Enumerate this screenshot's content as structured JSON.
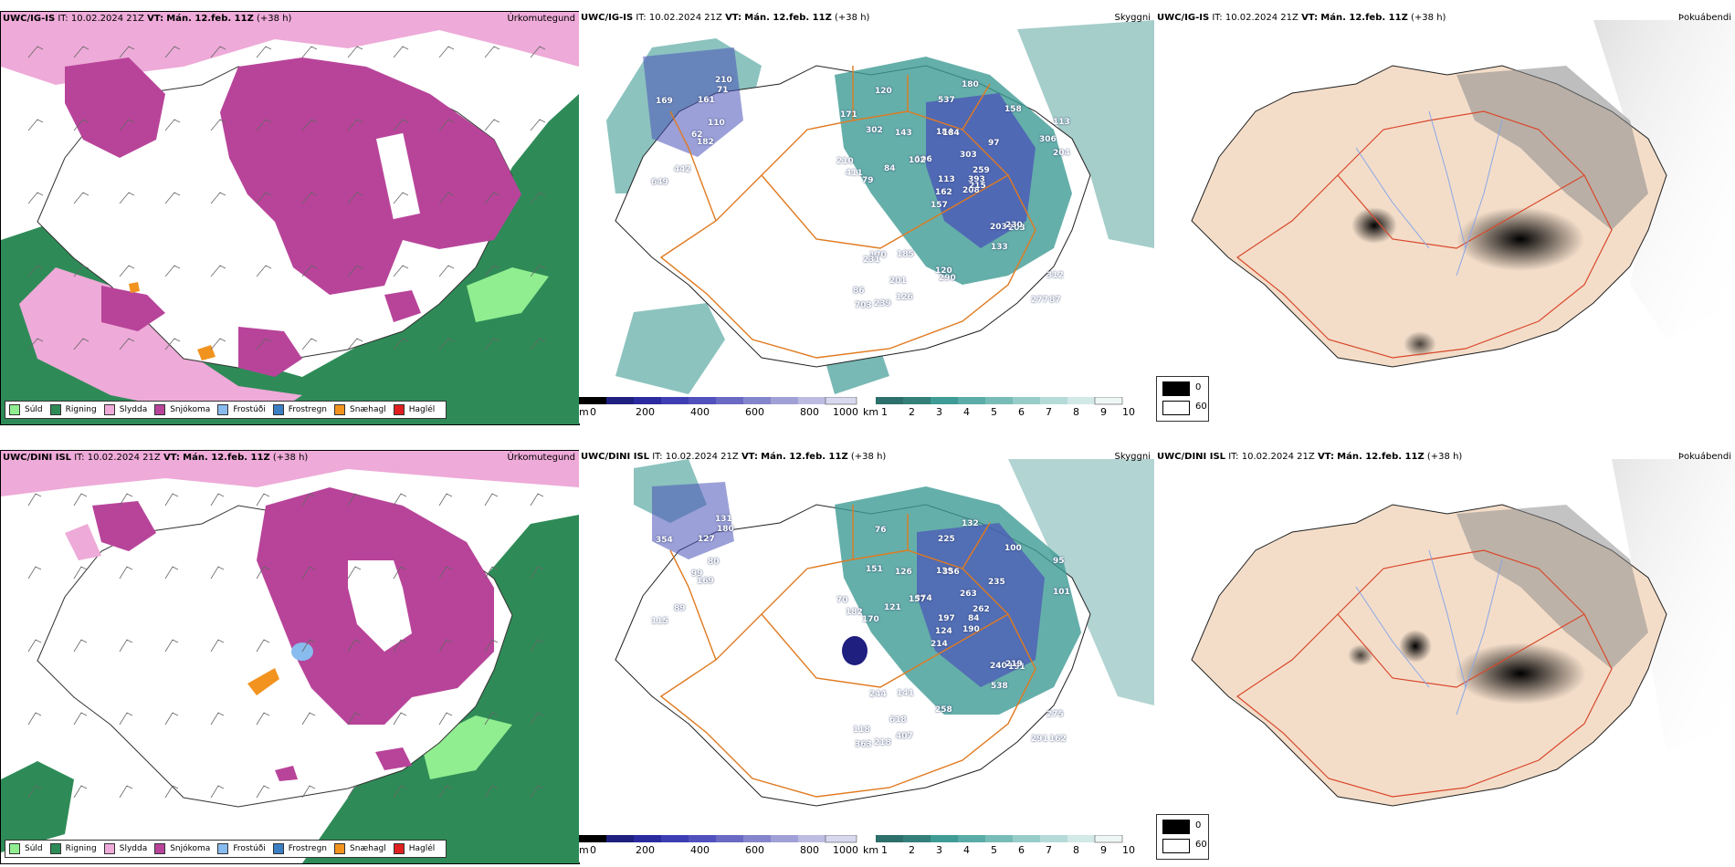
{
  "colors": {
    "sudd": "#90ee90",
    "rigning": "#2e8b57",
    "slydda": "#eeaad8",
    "snjokoma": "#b8449a",
    "frostudi": "#88bbee",
    "frostregn": "#3a7ec4",
    "snjohagl": "#f2931f",
    "haglel": "#e02020",
    "cloud_teal": "#3f9b95",
    "cloud_blue": "#4a52b8",
    "road": "#e07a20",
    "river": "#8aa6e6",
    "land": "#f3ddc9"
  },
  "rows": [
    {
      "model": "UWC/IG-IS",
      "it_label": "IT:",
      "it_value": "10.02.2024 21Z",
      "vt_label": "VT:",
      "vt_value": "Mán. 12.feb. 11Z",
      "lead": "(+38 h)"
    },
    {
      "model": "UWC/DINI ISL",
      "it_label": "IT:",
      "it_value": "10.02.2024 21Z",
      "vt_label": "VT:",
      "vt_value": "Mán. 12.feb. 11Z",
      "lead": "(+38 h)"
    }
  ],
  "panel_titles": {
    "precip": "Úrkomutegund",
    "cloud": "Skyggni",
    "fog": "Þokuábendi"
  },
  "precip_legend": [
    "Súld",
    "Rigning",
    "Slydda",
    "Snjókoma",
    "Frostúði",
    "Frostregn",
    "Snæhagl",
    "Haglél"
  ],
  "cloud_scale": {
    "m_unit": "m",
    "m_ticks": [
      "0",
      "200",
      "400",
      "600",
      "800",
      "1000"
    ],
    "km_unit": "km",
    "km_ticks": [
      "1",
      "2",
      "3",
      "4",
      "5",
      "6",
      "7",
      "8",
      "9",
      "10"
    ]
  },
  "fog_legend": [
    "0",
    "60"
  ],
  "cloud_values_top": [
    "182",
    "169",
    "62",
    "649",
    "110",
    "442",
    "210",
    "161",
    "71",
    "208",
    "120",
    "87",
    "79",
    "113",
    "157",
    "97",
    "239",
    "184",
    "303",
    "170",
    "106",
    "86",
    "201",
    "184",
    "259",
    "203",
    "302",
    "537",
    "411",
    "203",
    "204",
    "162",
    "120",
    "113",
    "143",
    "158",
    "185",
    "277",
    "312",
    "230",
    "180",
    "102",
    "84",
    "133",
    "126",
    "210",
    "393",
    "703",
    "290",
    "215",
    "231",
    "306",
    "171"
  ],
  "cloud_values_bottom": [
    "169",
    "354",
    "99",
    "115",
    "80",
    "89",
    "131",
    "127",
    "180",
    "190",
    "76",
    "162",
    "170",
    "95",
    "214",
    "235",
    "218",
    "139",
    "263",
    "244",
    "374",
    "118",
    "618",
    "356",
    "262",
    "191",
    "151",
    "225",
    "182",
    "240",
    "101",
    "124",
    "258",
    "197",
    "126",
    "100",
    "141",
    "291",
    "275",
    "219",
    "132",
    "157",
    "121",
    "538",
    "407",
    "70",
    "84",
    "363"
  ]
}
